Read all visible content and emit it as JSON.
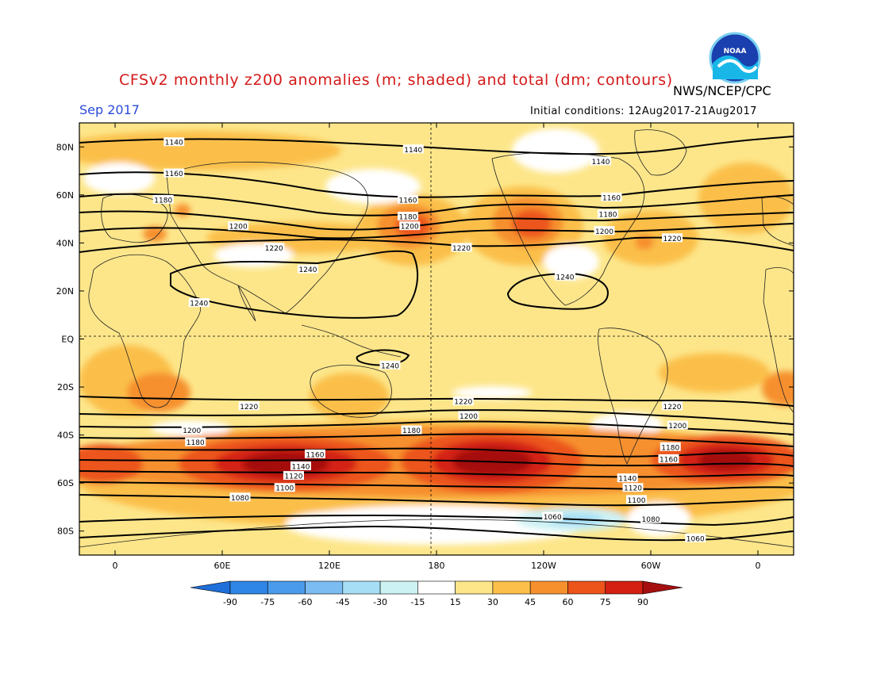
{
  "title": "CFSv2 monthly z200 anomalies (m; shaded) and total (dm; contours)",
  "agency": "NWS/NCEP/CPC",
  "month_label": "Sep 2017",
  "initial_conditions": "Initial conditions: 12Aug2017-21Aug2017",
  "logo_text": "NOAA",
  "lat_ticks": [
    {
      "label": "80N",
      "lat": 80
    },
    {
      "label": "60N",
      "lat": 60
    },
    {
      "label": "40N",
      "lat": 40
    },
    {
      "label": "20N",
      "lat": 20
    },
    {
      "label": "EQ",
      "lat": 0
    },
    {
      "label": "20S",
      "lat": -20
    },
    {
      "label": "40S",
      "lat": -40
    },
    {
      "label": "60S",
      "lat": -60
    },
    {
      "label": "80S",
      "lat": -80
    }
  ],
  "lon_ticks": [
    {
      "label": "0",
      "lon": 0
    },
    {
      "label": "60E",
      "lon": 60
    },
    {
      "label": "120E",
      "lon": 120
    },
    {
      "label": "180",
      "lon": 180
    },
    {
      "label": "120W",
      "lon": 240
    },
    {
      "label": "60W",
      "lon": 300
    },
    {
      "label": "0",
      "lon": 360
    }
  ],
  "colorbar": {
    "labels": [
      "-90",
      "-75",
      "-60",
      "-45",
      "-30",
      "-15",
      "15",
      "30",
      "45",
      "60",
      "75",
      "90"
    ],
    "colors": [
      "#1e6fd9",
      "#2f86e6",
      "#4a9bec",
      "#7bbcf2",
      "#a6def5",
      "#cdf2f4",
      "#ffffff",
      "#fde68a",
      "#fbbf4a",
      "#f6902d",
      "#ec541a",
      "#d42012",
      "#a50f0f"
    ]
  },
  "contours": [
    {
      "value": "1060",
      "label_positions": [
        [
          245,
          -74
        ],
        [
          325,
          -83
        ]
      ]
    },
    {
      "value": "1080",
      "label_positions": [
        [
          70,
          -66
        ],
        [
          300,
          -75
        ]
      ]
    },
    {
      "value": "1100",
      "label_positions": [
        [
          95,
          -62
        ],
        [
          292,
          -67
        ]
      ]
    },
    {
      "value": "1120",
      "label_positions": [
        [
          100,
          -57
        ],
        [
          290,
          -62
        ]
      ]
    },
    {
      "value": "1140",
      "label_positions": [
        [
          104,
          -53
        ],
        [
          287,
          -58
        ]
      ]
    },
    {
      "value": "1160",
      "label_positions": [
        [
          112,
          -48
        ],
        [
          310,
          -50
        ]
      ]
    },
    {
      "value": "1180",
      "label_positions": [
        [
          45,
          -43
        ],
        [
          166,
          -38
        ],
        [
          311,
          -45
        ]
      ]
    },
    {
      "value": "1200",
      "label_positions": [
        [
          43,
          -38
        ],
        [
          198,
          -32
        ],
        [
          315,
          -36
        ]
      ]
    },
    {
      "value": "1220",
      "label_positions": [
        [
          75,
          -28
        ],
        [
          195,
          -26
        ],
        [
          312,
          -28
        ]
      ]
    },
    {
      "value": "1240",
      "label_positions": [
        [
          108,
          29
        ],
        [
          47,
          15
        ],
        [
          154,
          -11
        ],
        [
          252,
          26
        ]
      ]
    },
    {
      "value": "1140",
      "label_positions": [
        [
          33,
          82
        ],
        [
          167,
          79
        ],
        [
          272,
          74
        ]
      ]
    },
    {
      "value": "1160",
      "label_positions": [
        [
          33,
          69
        ],
        [
          164,
          58
        ],
        [
          278,
          59
        ]
      ]
    },
    {
      "value": "1180",
      "label_positions": [
        [
          27,
          58
        ],
        [
          164,
          51
        ],
        [
          276,
          52
        ]
      ]
    },
    {
      "value": "1200",
      "label_positions": [
        [
          69,
          47
        ],
        [
          165,
          47
        ],
        [
          274,
          45
        ]
      ]
    },
    {
      "value": "1220",
      "label_positions": [
        [
          89,
          38
        ],
        [
          194,
          38
        ],
        [
          312,
          42
        ]
      ]
    }
  ]
}
